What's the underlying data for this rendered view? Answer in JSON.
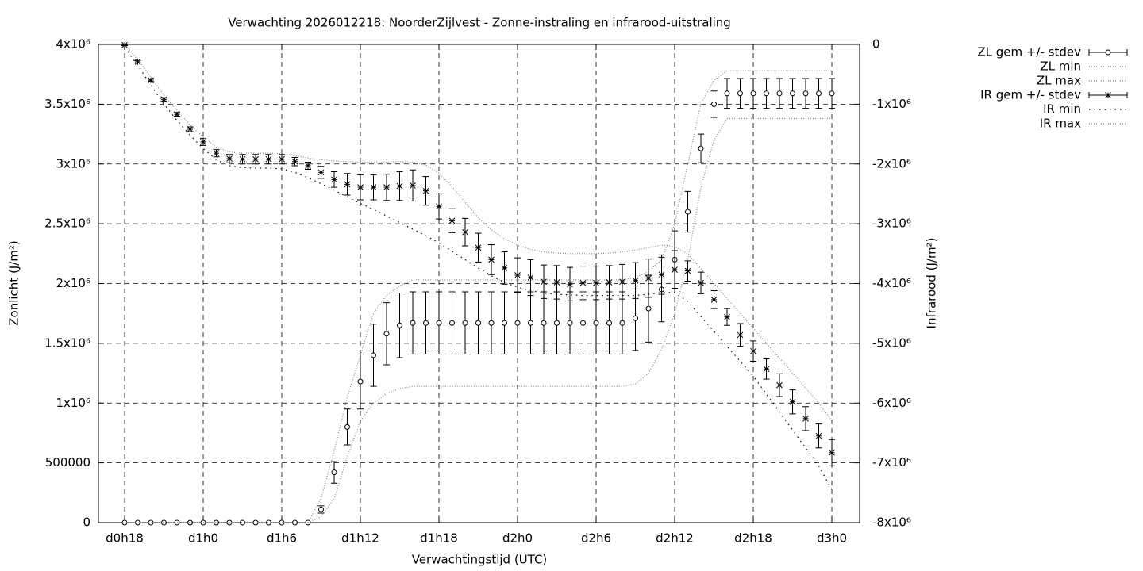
{
  "chart_data": {
    "type": "line",
    "title": "Verwachting 2026012218: NoorderZijlvest - Zonne-instraling en infrarood-uitstraling",
    "x_label": "Verwachtingstijd (UTC)",
    "y_label": "Zonlicht (J/m²)",
    "y2_label": "Infrarood (J/m²)",
    "x": [
      18,
      19,
      20,
      21,
      22,
      23,
      24,
      25,
      26,
      27,
      28,
      29,
      30,
      31,
      32,
      33,
      34,
      35,
      36,
      37,
      38,
      39,
      40,
      41,
      42,
      43,
      44,
      45,
      46,
      47,
      48,
      49,
      50,
      51,
      52,
      53,
      54,
      55,
      56,
      57,
      58,
      59,
      60,
      61,
      62,
      63,
      64,
      65,
      66,
      67,
      68,
      69,
      70,
      71,
      72
    ],
    "xlim": [
      16,
      74.12
    ],
    "xticks": [
      {
        "value": 18,
        "label": "d0h18"
      },
      {
        "value": 24,
        "label": "d1h0"
      },
      {
        "value": 30,
        "label": "d1h6"
      },
      {
        "value": 36,
        "label": "d1h12"
      },
      {
        "value": 42,
        "label": "d1h18"
      },
      {
        "value": 48,
        "label": "d2h0"
      },
      {
        "value": 54,
        "label": "d2h6"
      },
      {
        "value": 60,
        "label": "d2h12"
      },
      {
        "value": 66,
        "label": "d2h18"
      },
      {
        "value": 72,
        "label": "d3h0"
      }
    ],
    "ylim": [
      0,
      4000000
    ],
    "yticks": [
      0,
      500000,
      {
        "value": 1000000,
        "label": "1x10⁶"
      },
      {
        "value": 1500000,
        "label": "1.5x10⁶"
      },
      {
        "value": 2000000,
        "label": "2x10⁶"
      },
      {
        "value": 2500000,
        "label": "2.5x10⁶"
      },
      {
        "value": 3000000,
        "label": "3x10⁶"
      },
      {
        "value": 3500000,
        "label": "3.5x10⁶"
      },
      {
        "value": 4000000,
        "label": "4x10⁶"
      }
    ],
    "y2lim": [
      -8000000,
      0
    ],
    "y2ticks": [
      {
        "value": -8000000,
        "label": "-8x10⁶"
      },
      {
        "value": -7000000,
        "label": "-7x10⁶"
      },
      {
        "value": -6000000,
        "label": "-6x10⁶"
      },
      {
        "value": -5000000,
        "label": "-5x10⁶"
      },
      {
        "value": -4000000,
        "label": "-4x10⁶"
      },
      {
        "value": -3000000,
        "label": "-3x10⁶"
      },
      {
        "value": -2000000,
        "label": "-2x10⁶"
      },
      {
        "value": -1000000,
        "label": "-1x10⁶"
      },
      0
    ],
    "grid": true,
    "legend": "outside-right",
    "series": [
      {
        "name": "ZL gem +/- stdev",
        "color": "#000000",
        "style": "errorbars",
        "marker": "circle",
        "values": [
          0,
          0,
          0,
          0,
          0,
          0,
          0,
          0,
          0,
          0,
          0,
          0,
          0,
          0,
          0,
          110000.0,
          420000.0,
          800000.0,
          1180000.0,
          1400000.0,
          1580000.0,
          1650000.0,
          1670000.0,
          1670000.0,
          1670000.0,
          1670000.0,
          1670000.0,
          1670000.0,
          1670000.0,
          1670000.0,
          1670000.0,
          1670000.0,
          1670000.0,
          1670000.0,
          1670000.0,
          1670000.0,
          1670000.0,
          1670000.0,
          1670000.0,
          1710000.0,
          1790000.0,
          1950000.0,
          2200000.0,
          2600000.0,
          3130000.0,
          3500000.0,
          3590000.0,
          3590000.0,
          3590000.0,
          3590000.0,
          3590000.0,
          3590000.0,
          3590000.0,
          3590000.0,
          3590000.0
        ],
        "errors": [
          0,
          0,
          0,
          0,
          0,
          0,
          0,
          0,
          0,
          0,
          0,
          0,
          0,
          0,
          0,
          30000.0,
          90000.0,
          150000.0,
          230000.0,
          260000.0,
          260000.0,
          270000.0,
          260000.0,
          260000.0,
          260000.0,
          260000.0,
          260000.0,
          260000.0,
          260000.0,
          260000.0,
          260000.0,
          260000.0,
          260000.0,
          260000.0,
          260000.0,
          260000.0,
          260000.0,
          260000.0,
          260000.0,
          270000.0,
          280000.0,
          270000.0,
          240000.0,
          170000.0,
          120000.0,
          110000.0,
          125000.0,
          125000.0,
          125000.0,
          125000.0,
          125000.0,
          125000.0,
          125000.0,
          125000.0,
          125000.0
        ]
      },
      {
        "name": "ZL min",
        "color": "#888888",
        "style": "dotted",
        "dash": "1 2",
        "values": [
          0,
          0,
          0,
          0,
          0,
          0,
          0,
          0,
          0,
          0,
          0,
          0,
          0,
          0,
          0,
          50000.0,
          200000.0,
          550000.0,
          850000.0,
          1000000.0,
          1080000.0,
          1120000.0,
          1140000.0,
          1140000.0,
          1140000.0,
          1140000.0,
          1140000.0,
          1140000.0,
          1140000.0,
          1140000.0,
          1140000.0,
          1140000.0,
          1140000.0,
          1140000.0,
          1140000.0,
          1140000.0,
          1140000.0,
          1140000.0,
          1140000.0,
          1160000.0,
          1250000.0,
          1450000.0,
          1750000.0,
          2200000.0,
          2800000.0,
          3200000.0,
          3380000.0,
          3380000.0,
          3380000.0,
          3380000.0,
          3380000.0,
          3380000.0,
          3380000.0,
          3380000.0,
          3380000.0
        ]
      },
      {
        "name": "ZL max",
        "color": "#888888",
        "style": "dotted",
        "dash": "1 2",
        "values": [
          0,
          0,
          0,
          0,
          0,
          0,
          0,
          0,
          0,
          0,
          0,
          0,
          0,
          0,
          0,
          200000.0,
          600000.0,
          1050000.0,
          1400000.0,
          1750000.0,
          1900000.0,
          1980000.0,
          2030000.0,
          2030000.0,
          2030000.0,
          2030000.0,
          2030000.0,
          2030000.0,
          2030000.0,
          2030000.0,
          2030000.0,
          2030000.0,
          2030000.0,
          2030000.0,
          2030000.0,
          2030000.0,
          2030000.0,
          2030000.0,
          2030000.0,
          2050000.0,
          2100000.0,
          2200000.0,
          2500000.0,
          3000000.0,
          3500000.0,
          3700000.0,
          3780000.0,
          3780000.0,
          3780000.0,
          3780000.0,
          3780000.0,
          3780000.0,
          3780000.0,
          3780000.0,
          3780000.0
        ]
      },
      {
        "name": "IR gem +/- stdev",
        "color": "#000000",
        "style": "errorbars",
        "marker": "asterisk",
        "axis": "y2",
        "values": [
          -10000.0,
          -290000.0,
          -600000.0,
          -920000.0,
          -1170000.0,
          -1420000.0,
          -1630000.0,
          -1820000.0,
          -1910000.0,
          -1920000.0,
          -1920000.0,
          -1920000.0,
          -1920000.0,
          -1960000.0,
          -2030000.0,
          -2140000.0,
          -2260000.0,
          -2340000.0,
          -2390000.0,
          -2390000.0,
          -2390000.0,
          -2370000.0,
          -2360000.0,
          -2450000.0,
          -2710000.0,
          -2950000.0,
          -3140000.0,
          -3400000.0,
          -3600000.0,
          -3740000.0,
          -3860000.0,
          -3900000.0,
          -3970000.0,
          -3980000.0,
          -4010000.0,
          -3990000.0,
          -3990000.0,
          -3980000.0,
          -3970000.0,
          -3950000.0,
          -3910000.0,
          -3850000.0,
          -3770000.0,
          -3790000.0,
          -3990000.0,
          -4270000.0,
          -4560000.0,
          -4860000.0,
          -5130000.0,
          -5430000.0,
          -5700000.0,
          -5980000.0,
          -6260000.0,
          -6550000.0,
          -6830000.0
        ],
        "errors": [
          10000.0,
          20000.0,
          20000.0,
          30000.0,
          30000.0,
          40000.0,
          60000.0,
          60000.0,
          70000.0,
          80000.0,
          80000.0,
          80000.0,
          80000.0,
          70000.0,
          60000.0,
          100000.0,
          130000.0,
          180000.0,
          210000.0,
          210000.0,
          220000.0,
          240000.0,
          260000.0,
          240000.0,
          210000.0,
          200000.0,
          230000.0,
          240000.0,
          250000.0,
          270000.0,
          290000.0,
          300000.0,
          280000.0,
          280000.0,
          280000.0,
          280000.0,
          280000.0,
          280000.0,
          290000.0,
          300000.0,
          320000.0,
          330000.0,
          320000.0,
          170000.0,
          180000.0,
          150000.0,
          140000.0,
          190000.0,
          170000.0,
          170000.0,
          190000.0,
          200000.0,
          200000.0,
          200000.0,
          220000.0
        ]
      },
      {
        "name": "IR min",
        "color": "#000000",
        "style": "dotted",
        "dash": "1.5 5",
        "axis": "y2",
        "values": [
          -50000.0,
          -350000.0,
          -680000.0,
          -1000000.0,
          -1270000.0,
          -1520000.0,
          -1740000.0,
          -1930000.0,
          -2030000.0,
          -2060000.0,
          -2070000.0,
          -2070000.0,
          -2080000.0,
          -2140000.0,
          -2230000.0,
          -2330000.0,
          -2440000.0,
          -2550000.0,
          -2660000.0,
          -2760000.0,
          -2870000.0,
          -2980000.0,
          -3090000.0,
          -3200000.0,
          -3320000.0,
          -3460000.0,
          -3600000.0,
          -3740000.0,
          -3870000.0,
          -3980000.0,
          -4060000.0,
          -4120000.0,
          -4160000.0,
          -4180000.0,
          -4190000.0,
          -4200000.0,
          -4200000.0,
          -4200000.0,
          -4200000.0,
          -4200000.0,
          -4180000.0,
          -4150000.0,
          -4150000.0,
          -4300000.0,
          -4550000.0,
          -4800000.0,
          -5050000.0,
          -5300000.0,
          -5550000.0,
          -5850000.0,
          -6150000.0,
          -6450000.0,
          -6750000.0,
          -7050000.0,
          -7450000.0
        ]
      },
      {
        "name": "IR max",
        "color": "#888888",
        "style": "dotted",
        "dash": "1 2",
        "axis": "y2",
        "values": [
          0,
          -250000.0,
          -550000.0,
          -850000.0,
          -1100000.0,
          -1350000.0,
          -1550000.0,
          -1720000.0,
          -1800000.0,
          -1820000.0,
          -1820000.0,
          -1820000.0,
          -1830000.0,
          -1860000.0,
          -1900000.0,
          -1930000.0,
          -1950000.0,
          -1960000.0,
          -1970000.0,
          -1970000.0,
          -1970000.0,
          -1960000.0,
          -1970000.0,
          -2020000.0,
          -2150000.0,
          -2380000.0,
          -2640000.0,
          -2900000.0,
          -3100000.0,
          -3250000.0,
          -3360000.0,
          -3430000.0,
          -3470000.0,
          -3490000.0,
          -3500000.0,
          -3500000.0,
          -3500000.0,
          -3490000.0,
          -3470000.0,
          -3440000.0,
          -3400000.0,
          -3360000.0,
          -3380000.0,
          -3500000.0,
          -3750000.0,
          -4000000.0,
          -4250000.0,
          -4500000.0,
          -4750000.0,
          -5000000.0,
          -5250000.0,
          -5500000.0,
          -5750000.0,
          -6000000.0,
          -6300000.0
        ]
      }
    ]
  }
}
